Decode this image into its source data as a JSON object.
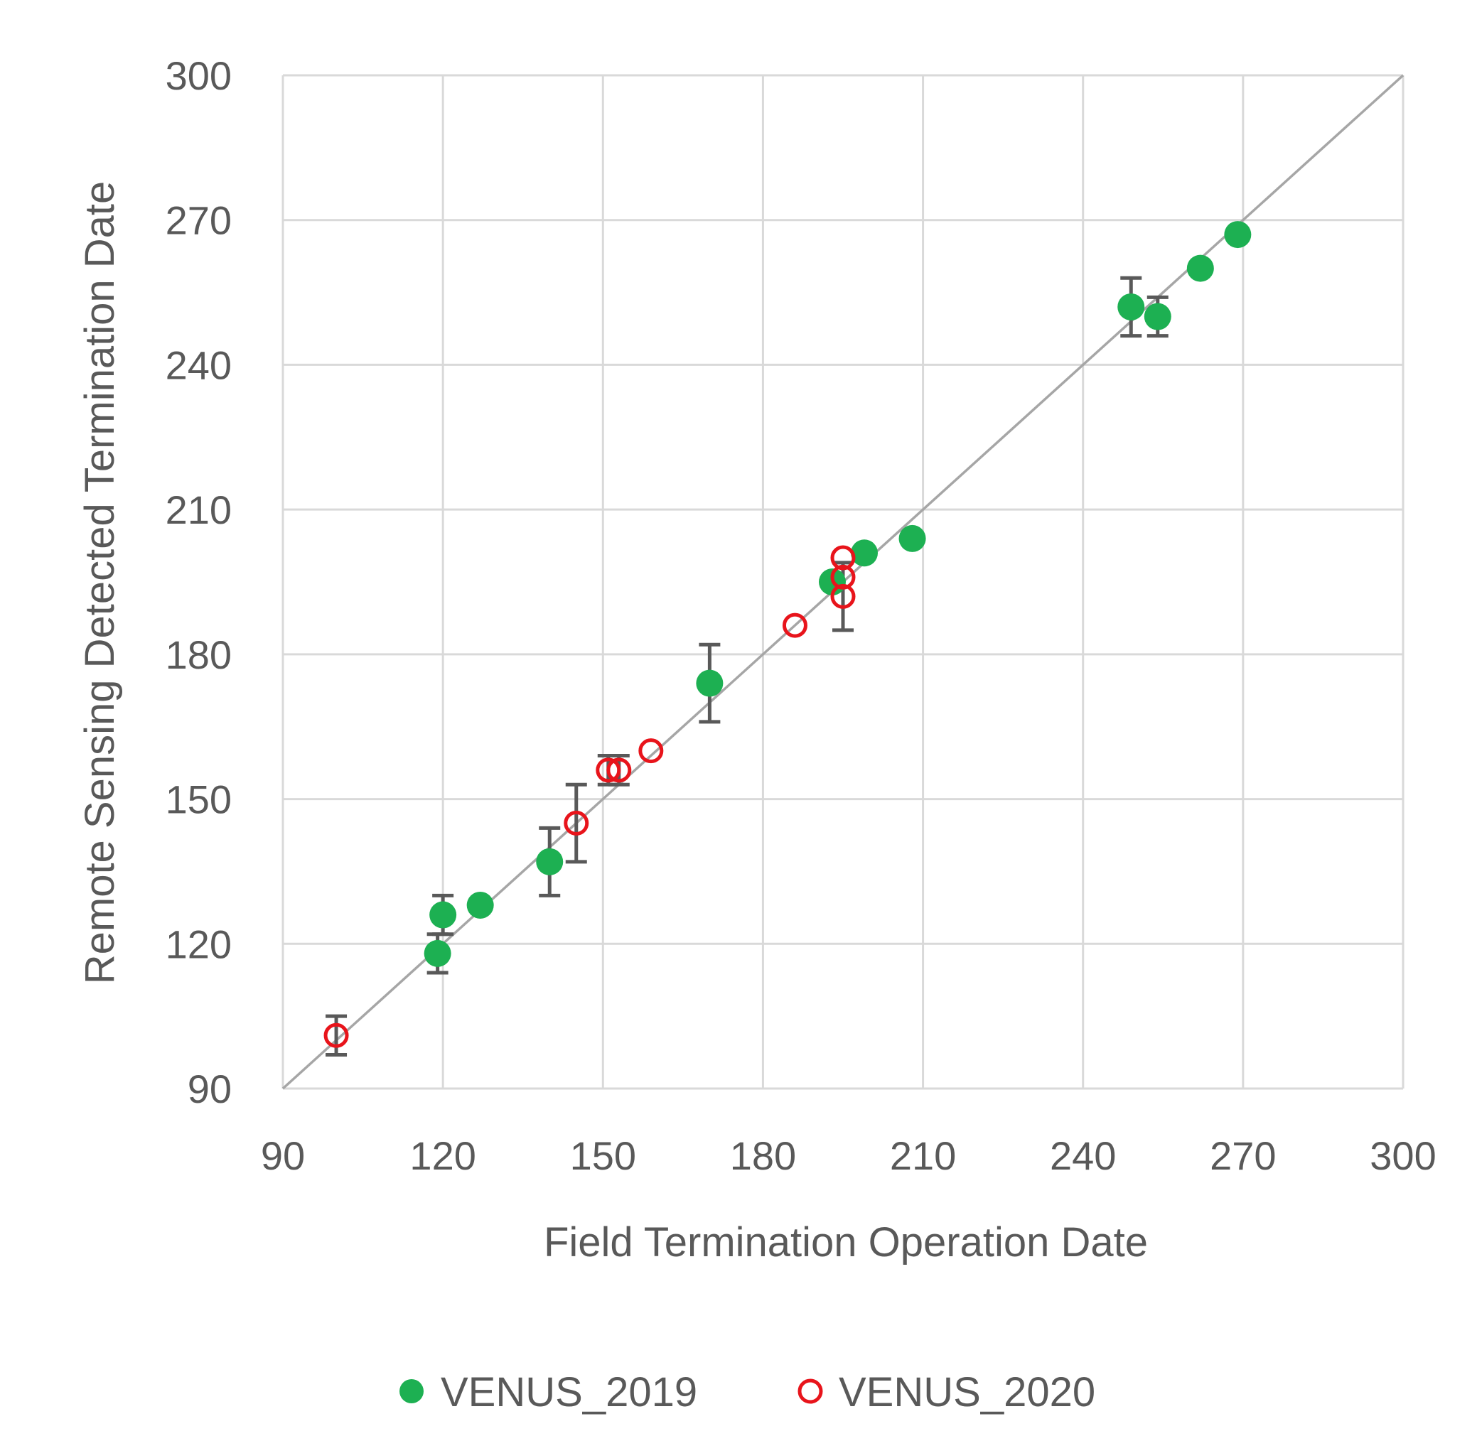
{
  "chart_data": {
    "type": "scatter",
    "title": "",
    "xlabel": "Field Termination Operation Date",
    "ylabel": "Remote Sensing Detected Termination Date",
    "xlim": [
      90,
      300
    ],
    "ylim": [
      90,
      300
    ],
    "xticks": [
      90,
      120,
      150,
      180,
      210,
      240,
      270,
      300
    ],
    "yticks": [
      90,
      120,
      150,
      180,
      210,
      240,
      270,
      300
    ],
    "grid": true,
    "reference_line": "1:1",
    "legend_position": "bottom",
    "series": [
      {
        "name": "VENUS_2019",
        "marker": "filled-circle",
        "color": "#1DB052",
        "points": [
          {
            "x": 119,
            "y": 118,
            "err": 4
          },
          {
            "x": 120,
            "y": 126,
            "err": 4
          },
          {
            "x": 127,
            "y": 128,
            "err": 0
          },
          {
            "x": 140,
            "y": 137,
            "err": 7
          },
          {
            "x": 170,
            "y": 174,
            "err": 8
          },
          {
            "x": 193,
            "y": 195,
            "err": 0
          },
          {
            "x": 199,
            "y": 201,
            "err": 0
          },
          {
            "x": 208,
            "y": 204,
            "err": 0
          },
          {
            "x": 249,
            "y": 252,
            "err": 6
          },
          {
            "x": 254,
            "y": 250,
            "err": 4
          },
          {
            "x": 262,
            "y": 260,
            "err": 0
          },
          {
            "x": 269,
            "y": 267,
            "err": 0
          }
        ]
      },
      {
        "name": "VENUS_2020",
        "marker": "open-circle",
        "color": "#E8141B",
        "points": [
          {
            "x": 100,
            "y": 101,
            "err": 4
          },
          {
            "x": 145,
            "y": 145,
            "err": 8
          },
          {
            "x": 151,
            "y": 156,
            "err": 3
          },
          {
            "x": 153,
            "y": 156,
            "err": 3
          },
          {
            "x": 159,
            "y": 160,
            "err": 0
          },
          {
            "x": 186,
            "y": 186,
            "err": 0
          },
          {
            "x": 195,
            "y": 200,
            "err": 0
          },
          {
            "x": 195,
            "y": 196,
            "err": 0
          },
          {
            "x": 195,
            "y": 192,
            "err": 7
          }
        ]
      }
    ]
  },
  "colors": {
    "grid": "#D9D9D9",
    "reference_line": "#A6A6A6",
    "error_bar": "#595959",
    "text": "#595959"
  }
}
